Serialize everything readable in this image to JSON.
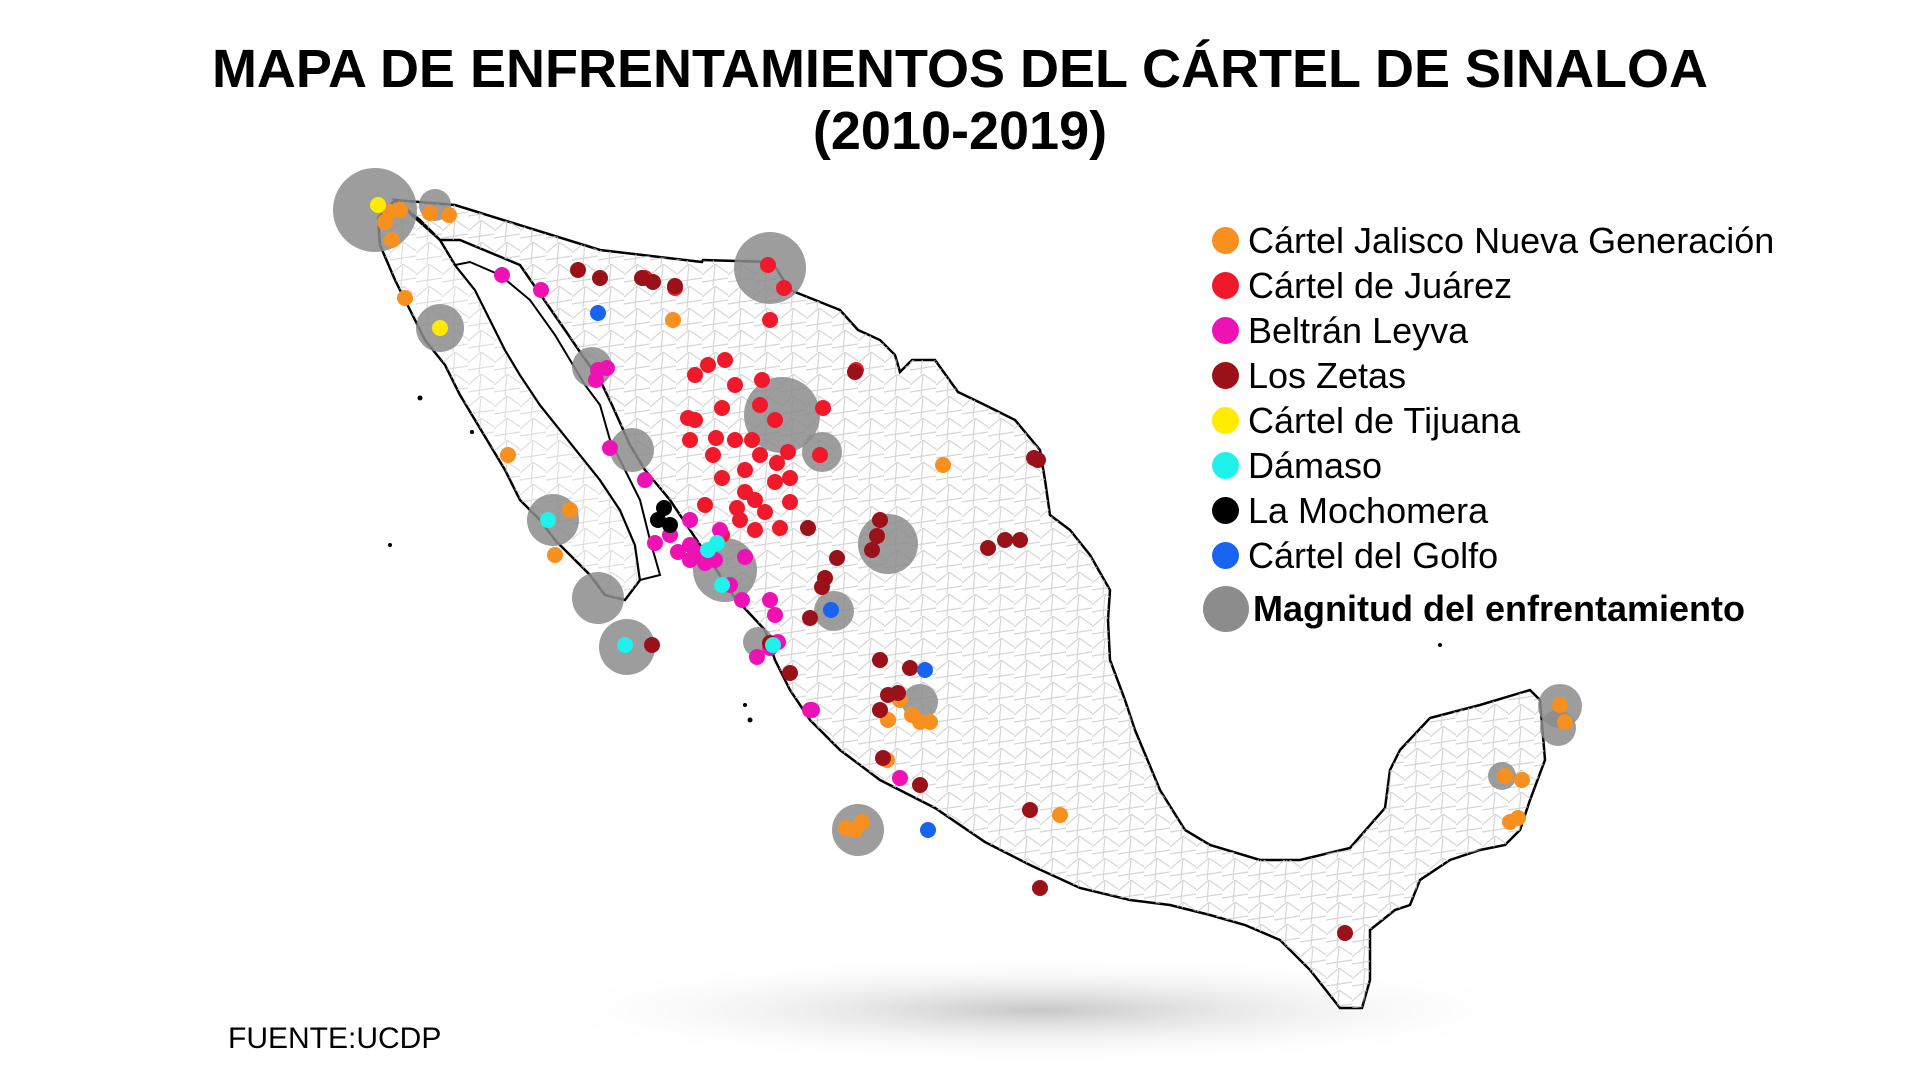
{
  "title": {
    "line1": "MAPA DE ENFRENTAMIENTOS DEL CÁRTEL DE SINALOA",
    "line2": "(2010-2019)"
  },
  "legend": [
    {
      "label": "Cártel Jalisco Nueva Generación",
      "color": "#f7901e"
    },
    {
      "label": "Cártel de Juárez",
      "color": "#f0192b"
    },
    {
      "label": "Beltrán Leyva",
      "color": "#ee12b5"
    },
    {
      "label": "Los Zetas",
      "color": "#9b111a"
    },
    {
      "label": "Cártel de Tijuana",
      "color": "#ffeb00"
    },
    {
      "label": "Dámaso",
      "color": "#1ff2ec"
    },
    {
      "label": "La Mochomera",
      "color": "#000000"
    },
    {
      "label": "Cártel del Golfo",
      "color": "#1863f0"
    }
  ],
  "magnitude_label": "Magnitud del enfrentamiento",
  "colors": {
    "magnitude": "#8c8c8c",
    "land": "#ffffff",
    "border": "#000000",
    "municipal_lines": "#c8c8c8"
  },
  "source": "FUENTE:UCDP"
}
